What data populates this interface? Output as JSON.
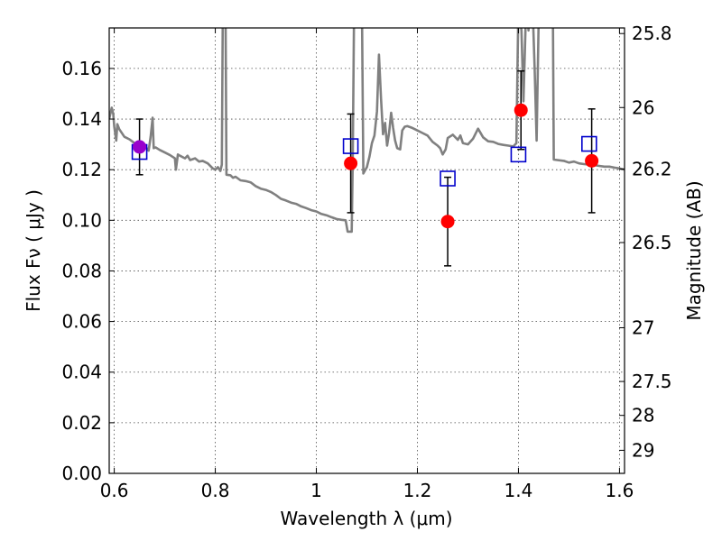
{
  "chart_data": {
    "type": "scatter",
    "xlabel": "Wavelength  λ (μm)",
    "ylabel": "Flux  Fν  ( μJy )",
    "ylabel_right": "Magnitude (AB)",
    "xlim": [
      0.59,
      1.61
    ],
    "ylim": [
      0.0,
      0.176
    ],
    "grid": true,
    "x_ticks": [
      0.6,
      0.8,
      1.0,
      1.2,
      1.4,
      1.6
    ],
    "x_tick_labels": [
      "0.6",
      "0.8",
      "1",
      "1.2",
      "1.4",
      "1.6"
    ],
    "y_ticks": [
      0.0,
      0.02,
      0.04,
      0.06,
      0.08,
      0.1,
      0.12,
      0.14,
      0.16
    ],
    "y_tick_labels": [
      "0.00",
      "0.02",
      "0.04",
      "0.06",
      "0.08",
      "0.10",
      "0.12",
      "0.14",
      "0.16"
    ],
    "right_ticks": [
      {
        "mag": 25.8,
        "label": "25.8"
      },
      {
        "mag": 26,
        "label": "26"
      },
      {
        "mag": 26.2,
        "label": "26.2"
      },
      {
        "mag": 26.5,
        "label": "26.5"
      },
      {
        "mag": 27,
        "label": "27"
      },
      {
        "mag": 27.5,
        "label": "27.5"
      },
      {
        "mag": 28,
        "label": "28"
      },
      {
        "mag": 29,
        "label": "29"
      }
    ],
    "colors": {
      "observed": "#ff0000",
      "model": "#0000cc",
      "spectrum": "#808080",
      "errorbar": "#000000",
      "overlap": "#9900cc"
    },
    "observed_points": [
      {
        "x": 0.65,
        "y": 0.129,
        "err": 0.011
      },
      {
        "x": 1.068,
        "y": 0.1225,
        "err": 0.0195
      },
      {
        "x": 1.26,
        "y": 0.0995,
        "err": 0.0175
      },
      {
        "x": 1.405,
        "y": 0.1435,
        "err": 0.0155
      },
      {
        "x": 1.545,
        "y": 0.1235,
        "err": 0.0205
      }
    ],
    "model_points": [
      {
        "x": 0.65,
        "y": 0.127
      },
      {
        "x": 1.068,
        "y": 0.1293
      },
      {
        "x": 1.26,
        "y": 0.1165
      },
      {
        "x": 1.4,
        "y": 0.126
      },
      {
        "x": 1.54,
        "y": 0.1302
      }
    ],
    "spectrum": [
      [
        0.59,
        0.14
      ],
      [
        0.595,
        0.1445
      ],
      [
        0.598,
        0.142
      ],
      [
        0.6,
        0.137
      ],
      [
        0.604,
        0.1315
      ],
      [
        0.606,
        0.138
      ],
      [
        0.61,
        0.136
      ],
      [
        0.62,
        0.133
      ],
      [
        0.63,
        0.132
      ],
      [
        0.64,
        0.1305
      ],
      [
        0.65,
        0.13
      ],
      [
        0.66,
        0.1295
      ],
      [
        0.668,
        0.1275
      ],
      [
        0.672,
        0.133
      ],
      [
        0.676,
        0.1405
      ],
      [
        0.678,
        0.1285
      ],
      [
        0.682,
        0.1288
      ],
      [
        0.69,
        0.1278
      ],
      [
        0.7,
        0.1268
      ],
      [
        0.71,
        0.1258
      ],
      [
        0.72,
        0.1245
      ],
      [
        0.722,
        0.12
      ],
      [
        0.726,
        0.126
      ],
      [
        0.73,
        0.1255
      ],
      [
        0.74,
        0.1245
      ],
      [
        0.745,
        0.1255
      ],
      [
        0.75,
        0.1238
      ],
      [
        0.76,
        0.1245
      ],
      [
        0.768,
        0.1232
      ],
      [
        0.775,
        0.1235
      ],
      [
        0.785,
        0.1225
      ],
      [
        0.795,
        0.1205
      ],
      [
        0.8,
        0.12
      ],
      [
        0.805,
        0.121
      ],
      [
        0.81,
        0.1195
      ],
      [
        0.813,
        0.122
      ],
      [
        0.815,
        0.19
      ],
      [
        0.82,
        0.19
      ],
      [
        0.822,
        0.118
      ],
      [
        0.83,
        0.1178
      ],
      [
        0.835,
        0.1168
      ],
      [
        0.84,
        0.1172
      ],
      [
        0.85,
        0.1158
      ],
      [
        0.86,
        0.1155
      ],
      [
        0.87,
        0.115
      ],
      [
        0.88,
        0.1135
      ],
      [
        0.89,
        0.1125
      ],
      [
        0.9,
        0.112
      ],
      [
        0.91,
        0.1112
      ],
      [
        0.92,
        0.11
      ],
      [
        0.93,
        0.1085
      ],
      [
        0.94,
        0.1078
      ],
      [
        0.95,
        0.107
      ],
      [
        0.96,
        0.1065
      ],
      [
        0.97,
        0.1055
      ],
      [
        0.98,
        0.1048
      ],
      [
        0.99,
        0.104
      ],
      [
        1.0,
        0.1035
      ],
      [
        1.01,
        0.1025
      ],
      [
        1.02,
        0.102
      ],
      [
        1.03,
        0.1012
      ],
      [
        1.04,
        0.1005
      ],
      [
        1.05,
        0.1002
      ],
      [
        1.058,
        0.1
      ],
      [
        1.062,
        0.0955
      ],
      [
        1.07,
        0.0955
      ],
      [
        1.072,
        0.122
      ],
      [
        1.075,
        0.19
      ],
      [
        1.09,
        0.19
      ],
      [
        1.093,
        0.1185
      ],
      [
        1.1,
        0.121
      ],
      [
        1.105,
        0.125
      ],
      [
        1.11,
        0.1305
      ],
      [
        1.115,
        0.1335
      ],
      [
        1.12,
        0.143
      ],
      [
        1.124,
        0.1655
      ],
      [
        1.128,
        0.148
      ],
      [
        1.132,
        0.134
      ],
      [
        1.136,
        0.1385
      ],
      [
        1.14,
        0.1295
      ],
      [
        1.144,
        0.1345
      ],
      [
        1.148,
        0.1425
      ],
      [
        1.152,
        0.1365
      ],
      [
        1.156,
        0.1315
      ],
      [
        1.16,
        0.1285
      ],
      [
        1.166,
        0.128
      ],
      [
        1.17,
        0.1355
      ],
      [
        1.175,
        0.137
      ],
      [
        1.18,
        0.1372
      ],
      [
        1.19,
        0.1365
      ],
      [
        1.2,
        0.1355
      ],
      [
        1.21,
        0.1345
      ],
      [
        1.22,
        0.1335
      ],
      [
        1.23,
        0.131
      ],
      [
        1.24,
        0.1295
      ],
      [
        1.245,
        0.1285
      ],
      [
        1.25,
        0.126
      ],
      [
        1.256,
        0.128
      ],
      [
        1.26,
        0.1325
      ],
      [
        1.27,
        0.1338
      ],
      [
        1.28,
        0.1318
      ],
      [
        1.285,
        0.1335
      ],
      [
        1.29,
        0.1305
      ],
      [
        1.3,
        0.13
      ],
      [
        1.31,
        0.1322
      ],
      [
        1.32,
        0.1362
      ],
      [
        1.33,
        0.1328
      ],
      [
        1.34,
        0.1312
      ],
      [
        1.35,
        0.131
      ],
      [
        1.36,
        0.1302
      ],
      [
        1.37,
        0.1298
      ],
      [
        1.38,
        0.1295
      ],
      [
        1.39,
        0.1292
      ],
      [
        1.396,
        0.1305
      ],
      [
        1.4,
        0.185
      ],
      [
        1.406,
        0.175
      ],
      [
        1.41,
        0.147
      ],
      [
        1.416,
        0.19
      ],
      [
        1.42,
        0.175
      ],
      [
        1.424,
        0.19
      ],
      [
        1.428,
        0.185
      ],
      [
        1.432,
        0.16
      ],
      [
        1.436,
        0.1315
      ],
      [
        1.44,
        0.178
      ],
      [
        1.446,
        0.19
      ],
      [
        1.468,
        0.19
      ],
      [
        1.47,
        0.124
      ],
      [
        1.49,
        0.1235
      ],
      [
        1.5,
        0.1228
      ],
      [
        1.51,
        0.1232
      ],
      [
        1.52,
        0.1225
      ],
      [
        1.53,
        0.1222
      ],
      [
        1.54,
        0.122
      ],
      [
        1.55,
        0.1218
      ],
      [
        1.56,
        0.1215
      ],
      [
        1.57,
        0.1212
      ],
      [
        1.58,
        0.1212
      ],
      [
        1.59,
        0.1208
      ],
      [
        1.6,
        0.1205
      ],
      [
        1.61,
        0.12
      ]
    ]
  }
}
